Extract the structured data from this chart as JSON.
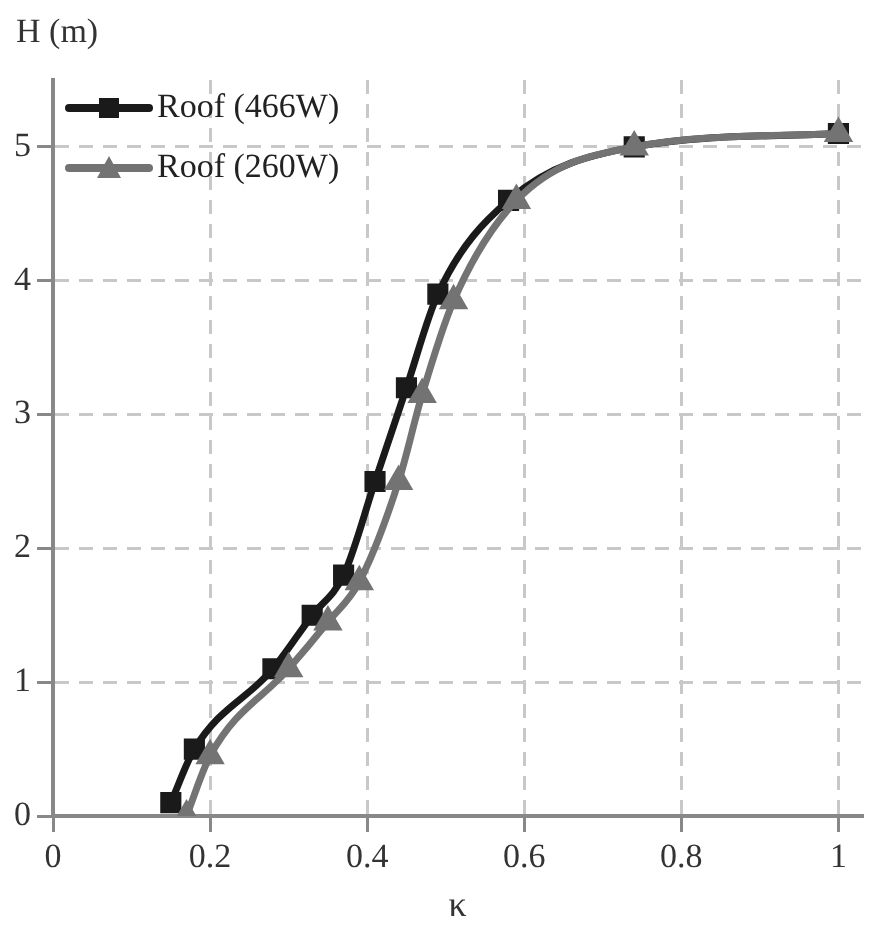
{
  "chart_data": {
    "type": "line",
    "xlabel": "κ",
    "ylabel": "H (m)",
    "xlim": [
      0,
      1.03
    ],
    "ylim": [
      0,
      5.5
    ],
    "xticks": [
      0,
      0.2,
      0.4,
      0.6,
      0.8,
      1
    ],
    "yticks": [
      0,
      1,
      2,
      3,
      4,
      5
    ],
    "grid": true,
    "legend": "top left",
    "line_style": "solid",
    "series": [
      {
        "name": "Roof (466W)",
        "color": "#1a1a1a",
        "marker": "square",
        "x": [
          0.15,
          0.18,
          0.28,
          0.33,
          0.37,
          0.41,
          0.45,
          0.49,
          0.58,
          0.74,
          1.0
        ],
        "values": [
          0.1,
          0.5,
          1.1,
          1.5,
          1.8,
          2.5,
          3.2,
          3.9,
          4.6,
          5.0,
          5.1
        ]
      },
      {
        "name": "Roof (260W)",
        "color": "#737373",
        "marker": "triangle",
        "x": [
          0.17,
          0.2,
          0.3,
          0.35,
          0.39,
          0.44,
          0.47,
          0.51,
          0.59,
          0.74,
          1.0
        ],
        "values": [
          0,
          0.45,
          1.1,
          1.45,
          1.75,
          2.5,
          3.15,
          3.85,
          4.6,
          5.0,
          5.1
        ]
      }
    ]
  }
}
